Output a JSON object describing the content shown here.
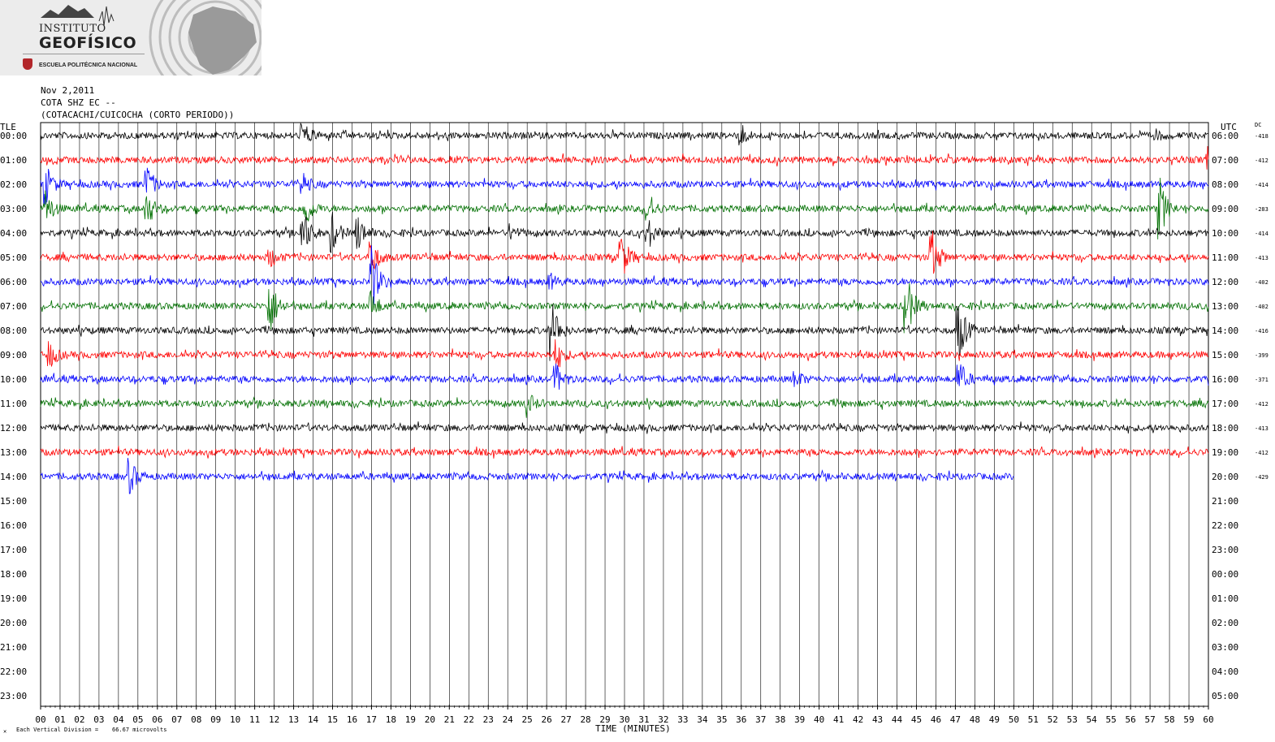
{
  "logo": {
    "line1": "INSTITUTO",
    "line2": "GEOFÍSICO",
    "line3": "ESCUELA POLITÉCNICA NACIONAL"
  },
  "header": {
    "date": "Nov 2,2011",
    "station": "COTA SHZ EC --",
    "location": "(COTACACHI/CUICOCHA (CORTO PERIODO))"
  },
  "chart_data": {
    "type": "line",
    "left_axis_title": "TLE",
    "right_axis_title": "UTC",
    "dc_label": "DC",
    "xlabel": "TIME (MINUTES)",
    "x_ticks": [
      "00",
      "01",
      "02",
      "03",
      "04",
      "05",
      "06",
      "07",
      "08",
      "09",
      "10",
      "11",
      "12",
      "13",
      "14",
      "15",
      "16",
      "17",
      "18",
      "19",
      "20",
      "21",
      "22",
      "23",
      "24",
      "25",
      "26",
      "27",
      "28",
      "29",
      "30",
      "31",
      "32",
      "33",
      "34",
      "35",
      "36",
      "37",
      "38",
      "39",
      "40",
      "41",
      "42",
      "43",
      "44",
      "45",
      "46",
      "47",
      "48",
      "49",
      "50",
      "51",
      "52",
      "53",
      "54",
      "55",
      "56",
      "57",
      "58",
      "59",
      "60"
    ],
    "xlim": [
      0,
      60
    ],
    "left_hours": [
      "00:00",
      "01:00",
      "02:00",
      "03:00",
      "04:00",
      "05:00",
      "06:00",
      "07:00",
      "08:00",
      "09:00",
      "10:00",
      "11:00",
      "12:00",
      "13:00",
      "14:00",
      "15:00",
      "16:00",
      "17:00",
      "18:00",
      "19:00",
      "20:00",
      "21:00",
      "22:00",
      "23:00"
    ],
    "right_hours": [
      "06:00",
      "07:00",
      "08:00",
      "09:00",
      "10:00",
      "11:00",
      "12:00",
      "13:00",
      "14:00",
      "15:00",
      "16:00",
      "17:00",
      "18:00",
      "19:00",
      "20:00",
      "21:00",
      "22:00",
      "23:00",
      "00:00",
      "01:00",
      "02:00",
      "03:00",
      "04:00",
      "05:00"
    ],
    "dc_values": [
      "-418",
      "-412",
      "-414",
      "-283",
      "-414",
      "-413",
      "-402",
      "-402",
      "-416",
      "-399",
      "-371",
      "-412",
      "-413",
      "-412",
      "-429"
    ],
    "trace_colors": [
      "#000000",
      "#ff0000",
      "#0000ff",
      "#007000"
    ],
    "traces_recorded": 15,
    "last_trace_end_minute": 50,
    "events": [
      {
        "row": 0,
        "minute": 13.5,
        "amp": 1.0
      },
      {
        "row": 0,
        "minute": 36,
        "amp": 0.7
      },
      {
        "row": 0,
        "minute": 57.2,
        "amp": 0.5
      },
      {
        "row": 1,
        "minute": 60,
        "amp": 1.0
      },
      {
        "row": 2,
        "minute": 0.3,
        "amp": 1.6
      },
      {
        "row": 2,
        "minute": 5.5,
        "amp": 1.4
      },
      {
        "row": 2,
        "minute": 13.5,
        "amp": 0.8
      },
      {
        "row": 3,
        "minute": 0.3,
        "amp": 1.5
      },
      {
        "row": 3,
        "minute": 5.5,
        "amp": 1.4
      },
      {
        "row": 3,
        "minute": 13.6,
        "amp": 1.6
      },
      {
        "row": 3,
        "minute": 31.2,
        "amp": 1.2
      },
      {
        "row": 3,
        "minute": 57.5,
        "amp": 2.6
      },
      {
        "row": 4,
        "minute": 13.5,
        "amp": 2.0
      },
      {
        "row": 4,
        "minute": 15,
        "amp": 1.6
      },
      {
        "row": 4,
        "minute": 16.3,
        "amp": 1.5
      },
      {
        "row": 4,
        "minute": 31.2,
        "amp": 1.4
      },
      {
        "row": 4,
        "minute": 24.2,
        "amp": 0.6
      },
      {
        "row": 5,
        "minute": 29.8,
        "amp": 2.4
      },
      {
        "row": 5,
        "minute": 45.8,
        "amp": 2.4
      },
      {
        "row": 5,
        "minute": 17.0,
        "amp": 1.6
      },
      {
        "row": 5,
        "minute": 11.8,
        "amp": 0.8
      },
      {
        "row": 6,
        "minute": 17.0,
        "amp": 3.0
      },
      {
        "row": 6,
        "minute": 26.2,
        "amp": 0.6
      },
      {
        "row": 7,
        "minute": 11.8,
        "amp": 2.4
      },
      {
        "row": 7,
        "minute": 44.5,
        "amp": 2.8
      },
      {
        "row": 7,
        "minute": 17.0,
        "amp": 1.2
      },
      {
        "row": 8,
        "minute": 26.3,
        "amp": 2.4
      },
      {
        "row": 8,
        "minute": 47.2,
        "amp": 2.6
      },
      {
        "row": 9,
        "minute": 0.5,
        "amp": 1.0
      },
      {
        "row": 9,
        "minute": 26.5,
        "amp": 1.2
      },
      {
        "row": 10,
        "minute": 26.5,
        "amp": 1.2
      },
      {
        "row": 10,
        "minute": 47.2,
        "amp": 1.4
      },
      {
        "row": 10,
        "minute": 38.8,
        "amp": 0.7
      },
      {
        "row": 11,
        "minute": 25.0,
        "amp": 1.0
      },
      {
        "row": 14,
        "minute": 4.6,
        "amp": 1.4
      }
    ]
  },
  "footer": {
    "scale_text": "Each Vertical Division =    66.67 microvolts",
    "corner_mark": "✕"
  }
}
